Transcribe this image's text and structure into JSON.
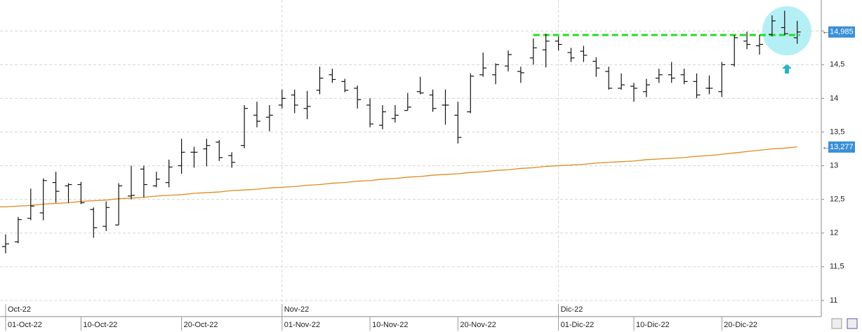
{
  "chart_data": {
    "type": "ohlc",
    "categories": [
      "01-Oct-22",
      null,
      null,
      null,
      null,
      null,
      "10-Oct-22",
      null,
      null,
      null,
      null,
      null,
      null,
      null,
      "20-Oct-22",
      null,
      null,
      null,
      null,
      null,
      null,
      null,
      "01-Nov-22",
      null,
      null,
      null,
      null,
      null,
      null,
      "10-Nov-22",
      null,
      null,
      null,
      null,
      null,
      null,
      "20-Nov-22",
      null,
      null,
      null,
      null,
      null,
      null,
      null,
      "01-Dic-22",
      null,
      null,
      null,
      null,
      null,
      "10-Dic-22",
      null,
      null,
      null,
      null,
      null,
      null,
      "20-Dic-22",
      null,
      null,
      null,
      null,
      null,
      null
    ],
    "months": [
      "Oct-22",
      null,
      null,
      null,
      null,
      null,
      null,
      null,
      null,
      null,
      null,
      null,
      null,
      null,
      null,
      null,
      null,
      null,
      null,
      null,
      null,
      null,
      "Nov-22",
      null,
      null,
      null,
      null,
      null,
      null,
      null,
      null,
      null,
      null,
      null,
      null,
      null,
      null,
      null,
      null,
      null,
      null,
      null,
      null,
      null,
      "Dic-22",
      null,
      null,
      null,
      null,
      null,
      null,
      null,
      null,
      null,
      null,
      null,
      null,
      null,
      null,
      null,
      null,
      null,
      null,
      null
    ],
    "open": [
      11.8,
      11.87,
      12.22,
      12.3,
      12.75,
      12.7,
      12.72,
      12.35,
      12.1,
      12.12,
      12.55,
      12.95,
      12.7,
      12.75,
      13.0,
      13.2,
      13.25,
      13.35,
      13.15,
      13.3,
      13.75,
      13.72,
      13.9,
      14.05,
      13.85,
      14.12,
      14.35,
      14.25,
      14.15,
      13.9,
      13.6,
      13.7,
      13.82,
      14.1,
      14.05,
      13.9,
      13.75,
      13.8,
      14.35,
      14.35,
      14.48,
      14.4,
      14.6,
      14.72,
      14.85,
      14.68,
      14.7,
      14.55,
      14.4,
      14.15,
      14.18,
      14.1,
      14.3,
      14.35,
      14.35,
      14.25,
      14.15,
      14.1,
      14.5,
      14.85,
      14.78,
      14.95,
      15.05,
      14.9
    ],
    "high": [
      11.98,
      12.24,
      12.66,
      12.81,
      12.91,
      12.74,
      12.76,
      12.38,
      12.47,
      12.74,
      13.0,
      13.0,
      12.91,
      13.09,
      13.4,
      13.28,
      13.4,
      13.38,
      13.2,
      13.9,
      13.95,
      13.9,
      14.13,
      14.13,
      14.11,
      14.47,
      14.44,
      14.29,
      14.19,
      14.0,
      13.9,
      13.9,
      14.08,
      14.32,
      14.13,
      14.13,
      13.95,
      14.37,
      14.68,
      14.52,
      14.71,
      14.47,
      14.89,
      14.96,
      14.92,
      14.75,
      14.78,
      14.61,
      14.47,
      14.37,
      14.23,
      14.29,
      14.44,
      14.54,
      14.44,
      14.37,
      14.34,
      14.54,
      14.94,
      14.99,
      14.94,
      15.23,
      15.3,
      15.15
    ],
    "low": [
      11.7,
      11.85,
      12.19,
      12.19,
      12.45,
      12.45,
      12.43,
      11.93,
      12.03,
      12.12,
      12.5,
      12.53,
      12.68,
      12.68,
      12.88,
      12.97,
      12.99,
      13.07,
      12.97,
      13.26,
      13.57,
      13.51,
      13.85,
      13.78,
      13.69,
      14.06,
      14.23,
      14.09,
      13.85,
      13.57,
      13.54,
      13.64,
      13.82,
      14.06,
      13.8,
      13.61,
      13.33,
      13.78,
      14.32,
      14.21,
      14.4,
      14.23,
      14.5,
      14.46,
      14.71,
      14.54,
      14.54,
      14.32,
      14.13,
      14.13,
      13.95,
      14.02,
      14.23,
      14.23,
      14.21,
      14.0,
      14.06,
      14.02,
      14.47,
      14.73,
      14.65,
      14.92,
      14.94,
      14.81
    ],
    "close": [
      11.84,
      12.2,
      12.4,
      12.78,
      12.62,
      12.72,
      12.45,
      12.08,
      12.38,
      12.7,
      12.56,
      12.72,
      12.8,
      12.98,
      13.2,
      13.2,
      13.3,
      13.12,
      13.05,
      13.85,
      13.66,
      13.75,
      14.0,
      13.9,
      13.88,
      14.3,
      14.28,
      14.12,
      13.98,
      13.62,
      13.8,
      13.75,
      13.87,
      14.08,
      13.85,
      13.9,
      13.42,
      14.33,
      14.45,
      14.5,
      14.65,
      14.38,
      14.75,
      14.85,
      14.8,
      14.6,
      14.64,
      14.45,
      14.15,
      14.2,
      14.15,
      14.2,
      14.35,
      14.3,
      14.25,
      14.05,
      14.15,
      14.5,
      14.9,
      14.8,
      14.8,
      15.15,
      14.96,
      14.985
    ],
    "color": "#111111",
    "moving_average": {
      "color": "#e08a1e",
      "values": [
        12.39,
        12.4,
        12.41,
        12.43,
        12.44,
        12.45,
        12.47,
        12.48,
        12.49,
        12.51,
        12.52,
        12.53,
        12.55,
        12.56,
        12.57,
        12.59,
        12.6,
        12.61,
        12.63,
        12.64,
        12.65,
        12.67,
        12.68,
        12.69,
        12.71,
        12.72,
        12.74,
        12.75,
        12.77,
        12.78,
        12.8,
        12.81,
        12.83,
        12.84,
        12.86,
        12.87,
        12.88,
        12.9,
        12.91,
        12.93,
        12.94,
        12.96,
        12.97,
        12.99,
        13.0,
        13.01,
        13.02,
        13.04,
        13.05,
        13.06,
        13.07,
        13.09,
        13.1,
        13.11,
        13.12,
        13.14,
        13.15,
        13.17,
        13.19,
        13.21,
        13.23,
        13.25,
        13.26,
        13.28
      ],
      "last_label": {
        "value": 13.277,
        "label": "13,277"
      }
    },
    "last_label": {
      "value": 14.985,
      "label": "14,985"
    },
    "resistance": {
      "value": 14.94,
      "start": 42,
      "color": "#22dd22"
    },
    "label_color": "#3a8fd8",
    "ylim": [
      10.76,
      15.46
    ],
    "yticks": [
      {
        "value": 11,
        "label": "11"
      },
      {
        "value": 11.5,
        "label": "11,5"
      },
      {
        "value": 12,
        "label": "12"
      },
      {
        "value": 12.5,
        "label": "12,5"
      },
      {
        "value": 13,
        "label": "13"
      },
      {
        "value": 13.5,
        "label": "13,5"
      },
      {
        "value": 14,
        "label": "14"
      },
      {
        "value": 14.5,
        "label": "14,5"
      },
      {
        "value": 15,
        "label": "15"
      }
    ],
    "grid": true
  }
}
